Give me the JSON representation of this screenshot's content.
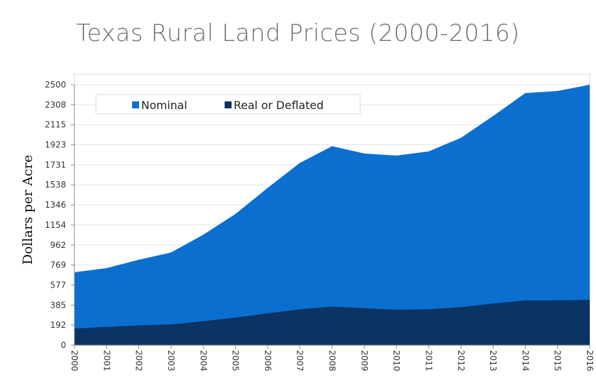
{
  "chart_data": {
    "type": "area",
    "title": "Texas Rural Land Prices (2000-2016)",
    "xlabel": "",
    "ylabel": "Dollars per Acre",
    "x": [
      "2000",
      "2001",
      "2002",
      "2003",
      "2004",
      "2005",
      "2006",
      "2007",
      "2008",
      "2009",
      "2010",
      "2011",
      "2012",
      "2013",
      "2014",
      "2015",
      "2016"
    ],
    "y_ticks": [
      "0",
      "192",
      "385",
      "577",
      "769",
      "962",
      "1154",
      "1346",
      "1538",
      "1731",
      "1923",
      "2115",
      "2308",
      "2500"
    ],
    "ylim": [
      0,
      2500
    ],
    "grid": true,
    "legend_position": "top-left",
    "series": [
      {
        "name": "Nominal",
        "color": "#0b6fcf",
        "values": [
          700,
          740,
          820,
          890,
          1060,
          1260,
          1510,
          1750,
          1910,
          1840,
          1820,
          1860,
          1990,
          2200,
          2420,
          2440,
          2500
        ]
      },
      {
        "name": "Real or Deflated",
        "color": "#0b3363",
        "values": [
          160,
          175,
          190,
          200,
          230,
          265,
          305,
          345,
          370,
          355,
          340,
          345,
          365,
          400,
          430,
          430,
          435
        ]
      }
    ]
  }
}
